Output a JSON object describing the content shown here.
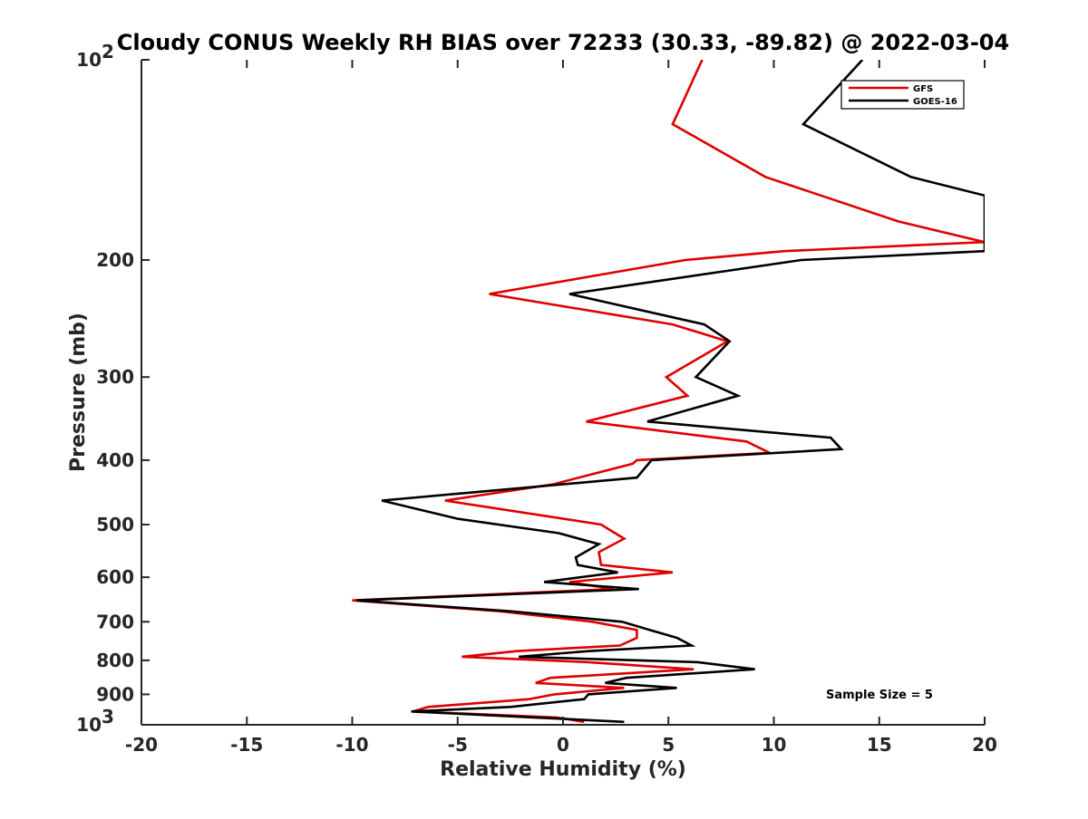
{
  "chart_data": {
    "type": "line",
    "title": "Cloudy CONUS Weekly RH BIAS over 72233 (30.33, -89.82) @ 2022-03-04",
    "xlabel": "Relative Humidity (%)",
    "ylabel": "Pressure (mb)",
    "xlim": [
      -20,
      20
    ],
    "ylim": [
      100,
      1000
    ],
    "yscale": "log",
    "y_reversed": true,
    "x_ticks": [
      {
        "value": -20,
        "label": "-20"
      },
      {
        "value": -15,
        "label": "-15"
      },
      {
        "value": -10,
        "label": "-10"
      },
      {
        "value": -5,
        "label": "-5"
      },
      {
        "value": 0,
        "label": "0"
      },
      {
        "value": 5,
        "label": "5"
      },
      {
        "value": 10,
        "label": "10"
      },
      {
        "value": 15,
        "label": "15"
      },
      {
        "value": 20,
        "label": "20"
      }
    ],
    "y_ticks": [
      {
        "value": 100,
        "base": "10",
        "exp": "2"
      },
      {
        "value": 200,
        "label": "200"
      },
      {
        "value": 300,
        "label": "300"
      },
      {
        "value": 400,
        "label": "400"
      },
      {
        "value": 500,
        "label": "500"
      },
      {
        "value": 600,
        "label": "600"
      },
      {
        "value": 700,
        "label": "700"
      },
      {
        "value": 800,
        "label": "800"
      },
      {
        "value": 900,
        "label": "900"
      },
      {
        "value": 1000,
        "base": "10",
        "exp": "3"
      }
    ],
    "series": [
      {
        "name": "GFS",
        "color": "#e00000",
        "points": [
          [
            6.6,
            100
          ],
          [
            5.2,
            125
          ],
          [
            9.6,
            150
          ],
          [
            15.9,
            175
          ],
          [
            20.0,
            188
          ],
          [
            10.5,
            194
          ],
          [
            5.8,
            200
          ],
          [
            -3.5,
            225
          ],
          [
            5.2,
            250
          ],
          [
            7.8,
            265
          ],
          [
            4.9,
            300
          ],
          [
            5.9,
            320
          ],
          [
            1.1,
            350
          ],
          [
            8.7,
            375
          ],
          [
            9.8,
            390
          ],
          [
            3.5,
            400
          ],
          [
            3.3,
            405
          ],
          [
            -0.5,
            435
          ],
          [
            -5.6,
            460
          ],
          [
            1.8,
            500
          ],
          [
            2.9,
            525
          ],
          [
            1.7,
            550
          ],
          [
            1.8,
            575
          ],
          [
            5.2,
            590
          ],
          [
            0.3,
            610
          ],
          [
            2.4,
            625
          ],
          [
            -10.0,
            650
          ],
          [
            -3.0,
            675
          ],
          [
            1.4,
            700
          ],
          [
            3.5,
            720
          ],
          [
            3.5,
            740
          ],
          [
            2.7,
            760
          ],
          [
            -2.2,
            775
          ],
          [
            -4.8,
            790
          ],
          [
            1.2,
            805
          ],
          [
            6.2,
            825
          ],
          [
            -0.6,
            850
          ],
          [
            -1.3,
            865
          ],
          [
            2.9,
            880
          ],
          [
            -0.4,
            900
          ],
          [
            -1.6,
            915
          ],
          [
            -6.4,
            940
          ],
          [
            -7.1,
            955
          ],
          [
            -0.3,
            975
          ],
          [
            1.0,
            990
          ]
        ]
      },
      {
        "name": "GOES-16",
        "color": "#000000",
        "points": [
          [
            14.2,
            100
          ],
          [
            11.4,
            125
          ],
          [
            16.5,
            150
          ],
          [
            20.0,
            160
          ],
          [
            20.0,
            160
          ],
          [
            20.0,
            194
          ],
          [
            11.3,
            200
          ],
          [
            0.3,
            225
          ],
          [
            6.7,
            250
          ],
          [
            7.9,
            265
          ],
          [
            6.3,
            300
          ],
          [
            8.3,
            320
          ],
          [
            4.0,
            350
          ],
          [
            12.7,
            370
          ],
          [
            13.2,
            385
          ],
          [
            4.2,
            400
          ],
          [
            3.5,
            425
          ],
          [
            -8.6,
            460
          ],
          [
            -5.0,
            490
          ],
          [
            -0.2,
            515
          ],
          [
            1.7,
            535
          ],
          [
            0.6,
            560
          ],
          [
            0.7,
            575
          ],
          [
            2.6,
            590
          ],
          [
            -0.9,
            610
          ],
          [
            3.6,
            625
          ],
          [
            -9.8,
            650
          ],
          [
            -2.5,
            675
          ],
          [
            2.8,
            700
          ],
          [
            4.1,
            720
          ],
          [
            5.4,
            740
          ],
          [
            6.1,
            760
          ],
          [
            1.2,
            775
          ],
          [
            -2.1,
            790
          ],
          [
            6.4,
            805
          ],
          [
            9.1,
            825
          ],
          [
            3.0,
            850
          ],
          [
            2.0,
            865
          ],
          [
            5.4,
            880
          ],
          [
            1.2,
            900
          ],
          [
            1.0,
            915
          ],
          [
            -2.5,
            940
          ],
          [
            -7.2,
            955
          ],
          [
            -1.4,
            975
          ],
          [
            2.9,
            990
          ]
        ]
      }
    ],
    "legend": {
      "position": "top-right",
      "entries": [
        "GFS",
        "GOES-16"
      ]
    },
    "annotations": [
      {
        "text": "Sample Size = 5",
        "position": "bottom-right"
      }
    ],
    "grid": false
  }
}
